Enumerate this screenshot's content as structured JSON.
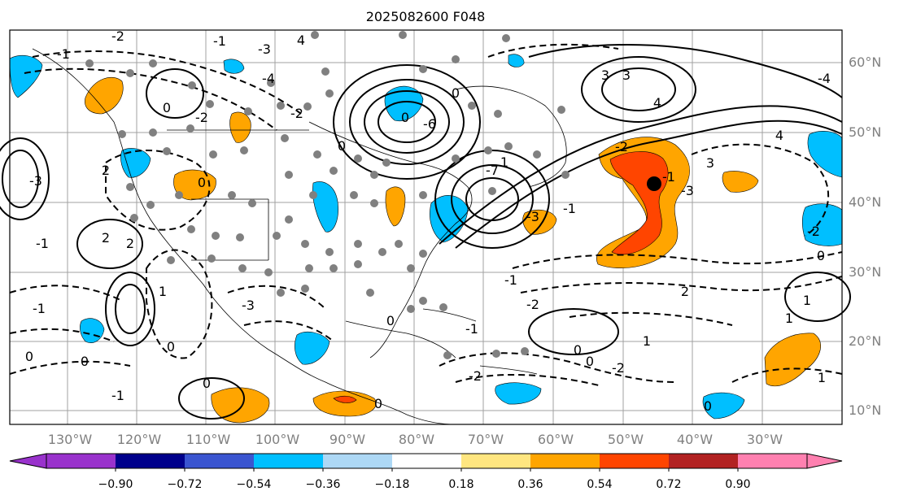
{
  "title": "2025082600 F048",
  "map": {
    "lat_labels": [
      "60°N",
      "50°N",
      "40°N",
      "30°N",
      "20°N",
      "10°N"
    ],
    "lon_labels": [
      "130°W",
      "120°W",
      "110°W",
      "100°W",
      "90°W",
      "80°W",
      "70°W",
      "60°W",
      "50°W",
      "40°W",
      "30°W"
    ],
    "contour_labels": [
      "-1",
      "-2",
      "-3",
      "-4",
      "-6",
      "-7",
      "4",
      "3",
      "2",
      "1",
      "0",
      "-1",
      "-2",
      "3",
      "4",
      "-1",
      "-2",
      "-3",
      "-4",
      "-3",
      "0",
      "-3",
      "0",
      "0",
      "-2",
      "2",
      "1",
      "0",
      "-1",
      "0",
      "-2",
      "-3",
      "1",
      "0",
      "2",
      "-1",
      "-2",
      "-1",
      "0",
      "4",
      "3",
      "-2",
      "-1",
      "0",
      "0",
      "0",
      "2",
      "0",
      "0",
      "-1",
      "0",
      "0",
      "-1",
      "-2",
      "1",
      "1",
      "1"
    ],
    "colors": {
      "frame": "#000000",
      "contour": "#000000",
      "grid": "#a0a0a0",
      "station": "#808080",
      "orange": "#ffa500",
      "red_orange": "#ff4500",
      "sky_blue": "#00bfff",
      "axis_label": "#808080"
    }
  },
  "colorbar": {
    "tick_labels": [
      "−0.90",
      "−0.72",
      "−0.54",
      "−0.36",
      "−0.18",
      "0.18",
      "0.36",
      "0.54",
      "0.72",
      "0.90"
    ],
    "colors": [
      "#9932cc",
      "#00008b",
      "#3a55d0",
      "#00bfff",
      "#add8f5",
      "#ffffff",
      "#ffe680",
      "#ffa500",
      "#ff4500",
      "#b22222",
      "#ff80b0"
    ]
  }
}
